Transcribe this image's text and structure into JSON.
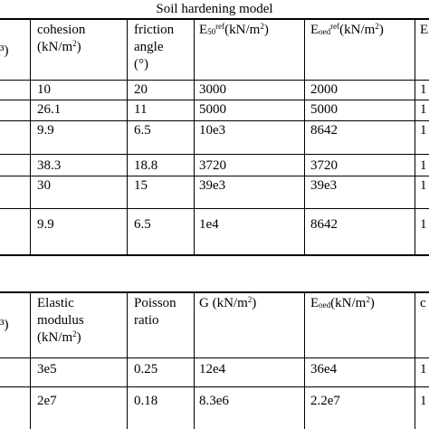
{
  "title": "Soil hardening model",
  "table1": {
    "header": {
      "col0_partial": "³)",
      "cohesion": [
        "cohesion",
        "(kN/m",
        "2",
        ")"
      ],
      "friction": [
        "friction",
        "angle",
        "(°)"
      ],
      "e50": [
        "E",
        "50",
        "ref",
        "(kN/m",
        "2",
        ")"
      ],
      "eoed": [
        "E",
        "oed",
        "ref",
        "(kN/m",
        "2",
        ")"
      ],
      "col6_partial": "E"
    },
    "rows": [
      {
        "cohesion": "10",
        "friction": "20",
        "e50": "3000",
        "eoed": "2000",
        "col6": "1"
      },
      {
        "cohesion": "26.1",
        "friction": "11",
        "e50": "5000",
        "eoed": "5000",
        "col6": "1"
      },
      {
        "cohesion": "9.9",
        "friction": "6.5",
        "e50": "10e3",
        "eoed": "8642",
        "col6": "1"
      },
      {
        "cohesion": "38.3",
        "friction": "18.8",
        "e50": "3720",
        "eoed": "3720",
        "col6": "1"
      },
      {
        "cohesion": "30",
        "friction": "15",
        "e50": "39e3",
        "eoed": "39e3",
        "col6": "1"
      },
      {
        "cohesion": "9.9",
        "friction": "6.5",
        "e50": "1e4",
        "eoed": "8642",
        "col6": "1"
      }
    ]
  },
  "table2": {
    "header": {
      "col0_partial": "³)",
      "elastic": [
        "Elastic",
        "modulus",
        "(kN/m",
        "2",
        ")"
      ],
      "poisson": [
        "Poisson",
        "ratio"
      ],
      "g": [
        "G (kN/m",
        "2",
        ")"
      ],
      "eoed": [
        "E",
        "oed",
        "(kN/m",
        "2",
        ")"
      ],
      "col6_partial": "c"
    },
    "rows": [
      {
        "elastic": "3e5",
        "poisson": "0.25",
        "g": "12e4",
        "eoed": "36e4",
        "col6": "1"
      },
      {
        "elastic": "2e7",
        "poisson": "0.18",
        "g": "8.3e6",
        "eoed": "2.2e7",
        "col6": "1"
      }
    ]
  }
}
